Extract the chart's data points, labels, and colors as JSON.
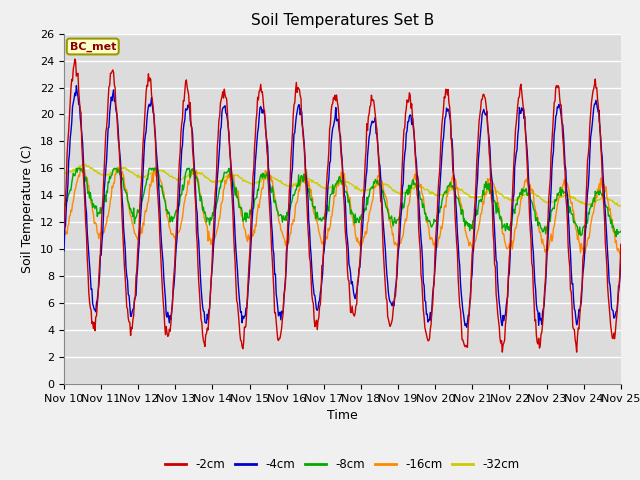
{
  "title": "Soil Temperatures Set B",
  "xlabel": "Time",
  "ylabel": "Soil Temperature (C)",
  "annotation": "BC_met",
  "ylim": [
    0,
    26
  ],
  "xtick_labels": [
    "Nov 10",
    "Nov 11",
    "Nov 12",
    "Nov 13",
    "Nov 14",
    "Nov 15",
    "Nov 16",
    "Nov 17",
    "Nov 18",
    "Nov 19",
    "Nov 20",
    "Nov 21",
    "Nov 22",
    "Nov 23",
    "Nov 24",
    "Nov 25"
  ],
  "ytick_values": [
    0,
    2,
    4,
    6,
    8,
    10,
    12,
    14,
    16,
    18,
    20,
    22,
    24,
    26
  ],
  "series_colors": [
    "#cc0000",
    "#0000cc",
    "#00aa00",
    "#ff8800",
    "#cccc00"
  ],
  "series_labels": [
    "-2cm",
    "-4cm",
    "-8cm",
    "-16cm",
    "-32cm"
  ],
  "plot_bg_color": "#dcdcdc",
  "fig_bg_color": "#f0f0f0",
  "grid_color": "#ffffff",
  "title_fontsize": 11,
  "label_fontsize": 9,
  "tick_fontsize": 8
}
